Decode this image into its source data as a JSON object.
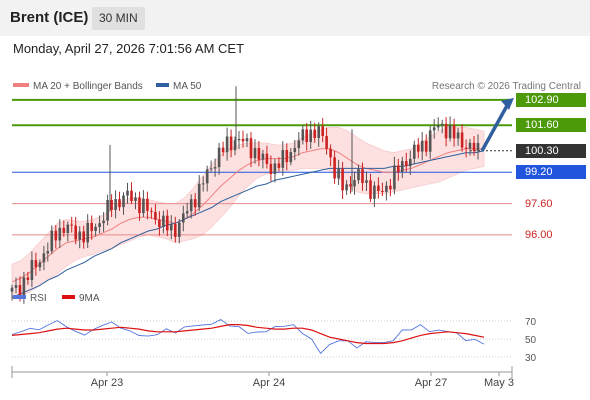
{
  "header": {
    "instrument": "Brent (ICE)",
    "interval": "30 MIN"
  },
  "timestamp": "Monday, April 27, 2026 7:01:56 AM CET",
  "legend": {
    "ma20": {
      "label": "MA 20 + Bollinger Bands",
      "color": "#f08080"
    },
    "ma50": {
      "label": "MA 50",
      "color": "#2f5f9e"
    },
    "rsi": {
      "label": "RSI",
      "color": "#5577dd"
    },
    "rsi_ma": {
      "label": "9MA",
      "color": "#dd1111"
    }
  },
  "credit": "Research © 2026 Trading Central",
  "colors": {
    "resistance": "#4c9a0a",
    "pivot": "#2255dd",
    "support": "#e88a8a",
    "current": "#333333",
    "band": "#fde0e0",
    "candle_up": "#555555",
    "candle_down": "#cc2222",
    "arrow": "#2f5f9e"
  },
  "chart_data": [
    {
      "type": "candlestick",
      "title": "Brent (ICE)",
      "interval": "30 MIN",
      "ylim": [
        93.9,
        103.2
      ],
      "x_ticks": [
        "Apr 23",
        "Apr 24",
        "Apr 27",
        "May 3"
      ],
      "levels": [
        {
          "value": "102.90",
          "kind": "resistance"
        },
        {
          "value": "101.60",
          "kind": "resistance"
        },
        {
          "value": "100.30",
          "kind": "current"
        },
        {
          "value": "99.20",
          "kind": "pivot"
        },
        {
          "value": "97.60",
          "kind": "support"
        },
        {
          "value": "96.00",
          "kind": "support"
        }
      ],
      "price_path": [
        93.1,
        93.4,
        94.1,
        94.7,
        95.3,
        96.2,
        96.4,
        96.1,
        96.0,
        96.3,
        96.8,
        97.5,
        97.8,
        98.0,
        97.7,
        97.3,
        96.9,
        96.5,
        96.2,
        96.8,
        97.6,
        98.4,
        99.3,
        100.1,
        100.6,
        100.9,
        100.7,
        100.3,
        99.8,
        99.4,
        99.7,
        100.2,
        100.8,
        101.2,
        101.3,
        100.8,
        99.2,
        98.4,
        98.8,
        99.0,
        98.3,
        98.1,
        98.6,
        99.3,
        99.8,
        100.3,
        100.6,
        101.4,
        101.6,
        101.2,
        100.8,
        100.5,
        100.3
      ],
      "ma20": [
        93.6,
        93.8,
        94.1,
        94.5,
        94.9,
        95.3,
        95.6,
        95.7,
        95.8,
        95.9,
        96.1,
        96.3,
        96.6,
        96.8,
        96.9,
        96.9,
        96.8,
        96.7,
        96.6,
        96.8,
        97.1,
        97.5,
        98.0,
        98.5,
        98.9,
        99.3,
        99.6,
        99.8,
        99.9,
        99.9,
        99.9,
        100.0,
        100.2,
        100.3,
        100.4,
        100.4,
        100.2,
        99.9,
        99.6,
        99.4,
        99.3,
        99.2,
        99.2,
        99.3,
        99.4,
        99.6,
        99.8,
        100.0,
        100.2,
        100.3,
        100.4,
        100.4,
        100.4
      ],
      "ma50": [
        92.8,
        93.0,
        93.2,
        93.4,
        93.7,
        93.9,
        94.2,
        94.4,
        94.6,
        94.9,
        95.1,
        95.3,
        95.6,
        95.8,
        96.0,
        96.2,
        96.3,
        96.5,
        96.6,
        96.8,
        97.0,
        97.2,
        97.4,
        97.7,
        97.9,
        98.1,
        98.3,
        98.5,
        98.6,
        98.8,
        98.9,
        99.0,
        99.1,
        99.2,
        99.3,
        99.4,
        99.4,
        99.4,
        99.4,
        99.4,
        99.4,
        99.4,
        99.5,
        99.5,
        99.6,
        99.7,
        99.8,
        99.9,
        100.0,
        100.1,
        100.2,
        100.2,
        100.3
      ],
      "band_width": [
        0.9,
        0.9,
        1.0,
        1.1,
        1.2,
        1.3,
        1.2,
        1.0,
        0.9,
        0.9,
        0.9,
        1.0,
        1.1,
        1.1,
        1.0,
        0.9,
        0.9,
        0.9,
        1.0,
        1.1,
        1.3,
        1.5,
        1.6,
        1.6,
        1.5,
        1.3,
        1.1,
        0.9,
        0.8,
        0.7,
        0.7,
        0.7,
        0.8,
        0.9,
        1.0,
        1.1,
        1.3,
        1.4,
        1.4,
        1.3,
        1.2,
        1.1,
        1.0,
        1.0,
        1.0,
        1.1,
        1.2,
        1.3,
        1.3,
        1.2,
        1.1,
        1.0,
        0.9
      ],
      "projection": {
        "from": 100.3,
        "to": 102.9
      }
    },
    {
      "type": "line",
      "title": "RSI",
      "ylim": [
        20,
        80
      ],
      "y_ticks": [
        70,
        50,
        30
      ],
      "series": [
        {
          "name": "RSI",
          "values": [
            55,
            58,
            62,
            60,
            66,
            70,
            64,
            58,
            55,
            60,
            66,
            68,
            63,
            58,
            55,
            52,
            56,
            60,
            58,
            62,
            66,
            64,
            68,
            70,
            66,
            62,
            58,
            56,
            60,
            62,
            66,
            64,
            58,
            48,
            36,
            42,
            50,
            46,
            42,
            45,
            48,
            44,
            50,
            58,
            62,
            64,
            60,
            58,
            60,
            55,
            50,
            48,
            46
          ]
        },
        {
          "name": "9MA",
          "values": [
            54,
            55,
            56,
            57,
            59,
            61,
            62,
            61,
            60,
            60,
            61,
            62,
            63,
            62,
            61,
            59,
            58,
            58,
            58,
            59,
            60,
            61,
            62,
            64,
            66,
            66,
            65,
            63,
            62,
            61,
            61,
            62,
            62,
            60,
            56,
            52,
            50,
            48,
            46,
            45,
            45,
            45,
            46,
            48,
            51,
            54,
            56,
            57,
            58,
            57,
            56,
            54,
            52
          ]
        }
      ]
    }
  ]
}
